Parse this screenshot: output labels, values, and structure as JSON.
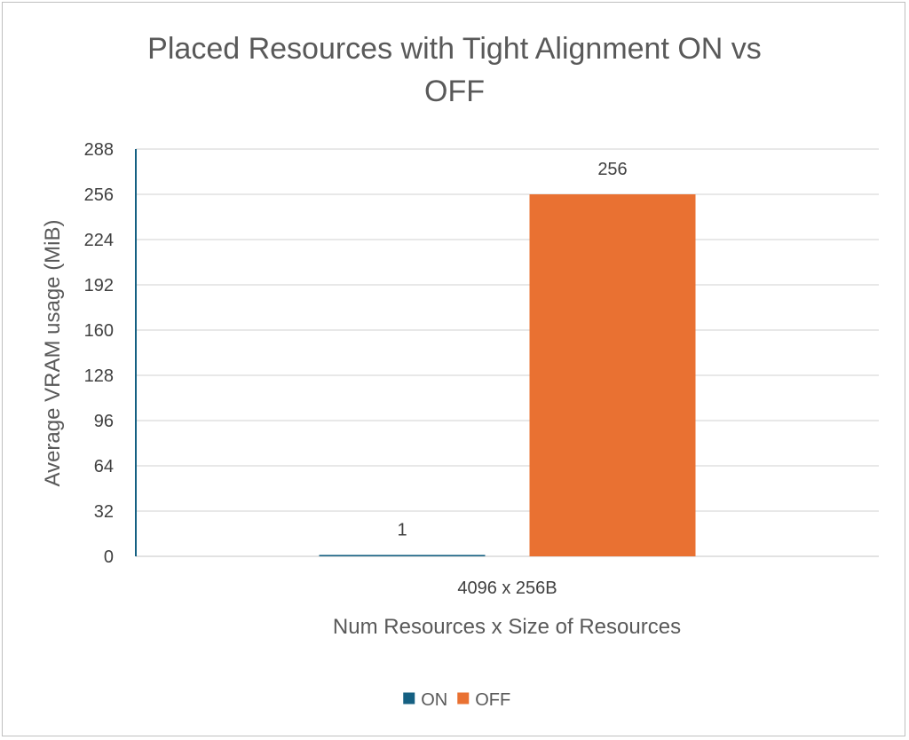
{
  "chart_data": {
    "type": "bar",
    "title_lines": [
      "Placed Resources with Tight Alignment ON vs",
      "OFF"
    ],
    "categories": [
      "4096 x 256B"
    ],
    "series": [
      {
        "name": "ON",
        "values": [
          1
        ],
        "color": "#156082"
      },
      {
        "name": "OFF",
        "values": [
          256
        ],
        "color": "#E97132"
      }
    ],
    "xlabel": "Num Resources x Size of Resources",
    "ylabel": "Average VRAM usage (MiB)",
    "ylim": [
      0,
      288
    ],
    "yticks": [
      0,
      32,
      64,
      96,
      128,
      160,
      192,
      224,
      256,
      288
    ],
    "grid": true,
    "legend_position": "bottom"
  }
}
